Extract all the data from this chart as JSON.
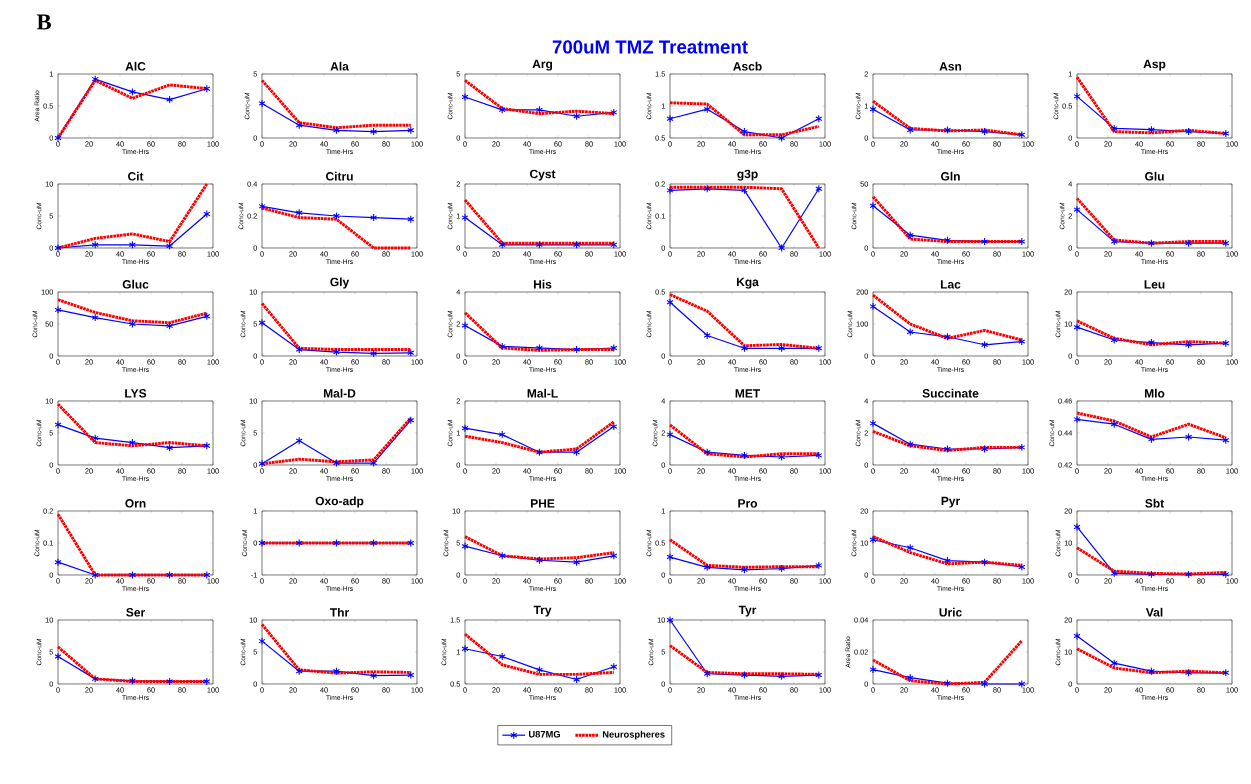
{
  "chart_data": [
    {
      "type": "line",
      "title": "AlC",
      "xlabel": "Time-Hrs",
      "ylabel": "Area Ratio",
      "annotations": [
        "B",
        "700uM TMZ Treatment"
      ],
      "x": [
        0,
        24,
        48,
        72,
        96
      ],
      "xlim": [
        0,
        100
      ],
      "xticks": [
        0,
        20,
        40,
        60,
        80,
        100
      ],
      "ylim": [
        0,
        1
      ],
      "yticks": [
        0,
        0.5,
        1
      ],
      "series": [
        {
          "color": "#0000ff",
          "marker": "cross",
          "line_style": "solid",
          "values": [
            0,
            0.92,
            0.72,
            0.6,
            0.77
          ]
        },
        {
          "color": "#ff0000",
          "marker": "none",
          "line_style": "dotted",
          "values": [
            0,
            0.9,
            0.62,
            0.83,
            0.77
          ]
        }
      ]
    },
    {
      "type": "line",
      "title": "Ala",
      "xlabel": "Time-Hrs",
      "ylabel": "Conc-uM",
      "x": [
        0,
        24,
        48,
        72,
        96
      ],
      "xlim": [
        0,
        100
      ],
      "xticks": [
        0,
        20,
        40,
        60,
        80,
        100
      ],
      "ylim": [
        0,
        5
      ],
      "yticks": [
        0,
        5
      ],
      "series": [
        {
          "color": "#0000ff",
          "marker": "cross",
          "line_style": "solid",
          "values": [
            2.7,
            1.0,
            0.6,
            0.5,
            0.6
          ]
        },
        {
          "color": "#ff0000",
          "marker": "none",
          "line_style": "dotted",
          "values": [
            4.5,
            1.2,
            0.8,
            1.0,
            1.0
          ]
        }
      ]
    },
    {
      "type": "line",
      "title": "Arg",
      "xlabel": "Time-Hrs",
      "ylabel": "Conc-uM",
      "x": [
        0,
        24,
        48,
        72,
        96
      ],
      "xlim": [
        0,
        100
      ],
      "xticks": [
        0,
        20,
        40,
        60,
        80,
        100
      ],
      "ylim": [
        0,
        5
      ],
      "yticks": [
        0,
        5
      ],
      "series": [
        {
          "color": "#0000ff",
          "marker": "cross",
          "line_style": "solid",
          "values": [
            3.2,
            2.2,
            2.2,
            1.7,
            2.0
          ]
        },
        {
          "color": "#ff0000",
          "marker": "none",
          "line_style": "dotted",
          "values": [
            4.5,
            2.3,
            1.9,
            2.1,
            1.9
          ]
        }
      ]
    },
    {
      "type": "line",
      "title": "Ascb",
      "xlabel": "Time-Hrs",
      "ylabel": "Conc-uM",
      "x": [
        0,
        24,
        48,
        72,
        96
      ],
      "xlim": [
        0,
        100
      ],
      "xticks": [
        0,
        20,
        40,
        60,
        80,
        100
      ],
      "ylim": [
        0.5,
        1.5
      ],
      "yticks": [
        0.5,
        1,
        1.5
      ],
      "series": [
        {
          "color": "#0000ff",
          "marker": "cross",
          "line_style": "solid",
          "values": [
            0.8,
            0.95,
            0.6,
            0.5,
            0.8
          ]
        },
        {
          "color": "#ff0000",
          "marker": "none",
          "line_style": "dotted",
          "values": [
            1.05,
            1.03,
            0.55,
            0.55,
            0.68
          ]
        }
      ]
    },
    {
      "type": "line",
      "title": "Asn",
      "xlabel": "Time-Hrs",
      "ylabel": "Conc-uM",
      "x": [
        0,
        24,
        48,
        72,
        96
      ],
      "xlim": [
        0,
        100
      ],
      "xticks": [
        0,
        20,
        40,
        60,
        80,
        100
      ],
      "ylim": [
        0,
        2
      ],
      "yticks": [
        0,
        1,
        2
      ],
      "series": [
        {
          "color": "#0000ff",
          "marker": "cross",
          "line_style": "solid",
          "values": [
            0.9,
            0.25,
            0.25,
            0.2,
            0.1
          ]
        },
        {
          "color": "#ff0000",
          "marker": "none",
          "line_style": "dotted",
          "values": [
            1.15,
            0.3,
            0.22,
            0.25,
            0.1
          ]
        }
      ]
    },
    {
      "type": "line",
      "title": "Asp",
      "xlabel": "Time-Hrs",
      "ylabel": "Conc-uM",
      "x": [
        0,
        24,
        48,
        72,
        96
      ],
      "xlim": [
        0,
        100
      ],
      "xticks": [
        0,
        20,
        40,
        60,
        80,
        100
      ],
      "ylim": [
        0,
        1
      ],
      "yticks": [
        0,
        0.5,
        1
      ],
      "series": [
        {
          "color": "#0000ff",
          "marker": "cross",
          "line_style": "solid",
          "values": [
            0.65,
            0.15,
            0.13,
            0.1,
            0.07
          ]
        },
        {
          "color": "#ff0000",
          "marker": "none",
          "line_style": "dotted",
          "values": [
            0.95,
            0.1,
            0.08,
            0.12,
            0.07
          ]
        }
      ]
    },
    {
      "type": "line",
      "title": "Cit",
      "xlabel": "Time-Hrs",
      "ylabel": "Conc-uM",
      "x": [
        0,
        24,
        48,
        72,
        96
      ],
      "xlim": [
        0,
        100
      ],
      "xticks": [
        0,
        20,
        40,
        60,
        80,
        100
      ],
      "ylim": [
        0,
        10
      ],
      "yticks": [
        0,
        5,
        10
      ],
      "series": [
        {
          "color": "#0000ff",
          "marker": "cross",
          "line_style": "solid",
          "values": [
            0,
            0.5,
            0.5,
            0.3,
            5.3
          ]
        },
        {
          "color": "#ff0000",
          "marker": "none",
          "line_style": "dotted",
          "values": [
            0,
            1.5,
            2.2,
            1.0,
            10
          ]
        }
      ]
    },
    {
      "type": "line",
      "title": "Citru",
      "xlabel": "Time-Hrs",
      "ylabel": "Conc-uM",
      "x": [
        0,
        24,
        48,
        72,
        96
      ],
      "xlim": [
        0,
        100
      ],
      "xticks": [
        0,
        20,
        40,
        60,
        80,
        100
      ],
      "ylim": [
        0,
        0.4
      ],
      "yticks": [
        0,
        0.2,
        0.4
      ],
      "series": [
        {
          "color": "#0000ff",
          "marker": "cross",
          "line_style": "solid",
          "values": [
            0.26,
            0.22,
            0.2,
            0.19,
            0.18
          ]
        },
        {
          "color": "#ff0000",
          "marker": "none",
          "line_style": "dotted",
          "values": [
            0.25,
            0.19,
            0.18,
            0,
            0
          ]
        }
      ]
    },
    {
      "type": "line",
      "title": "Cyst",
      "xlabel": "Time-Hrs",
      "ylabel": "Conc-uM",
      "x": [
        0,
        24,
        48,
        72,
        96
      ],
      "xlim": [
        0,
        100
      ],
      "xticks": [
        0,
        20,
        40,
        60,
        80,
        100
      ],
      "ylim": [
        0,
        2
      ],
      "yticks": [
        0,
        1,
        2
      ],
      "series": [
        {
          "color": "#0000ff",
          "marker": "cross",
          "line_style": "solid",
          "values": [
            0.95,
            0.1,
            0.1,
            0.1,
            0.1
          ]
        },
        {
          "color": "#ff0000",
          "marker": "none",
          "line_style": "dotted",
          "values": [
            1.5,
            0.15,
            0.15,
            0.15,
            0.15
          ]
        }
      ]
    },
    {
      "type": "line",
      "title": "g3p",
      "xlabel": "Time-Hrs",
      "ylabel": "Conc-uM",
      "x": [
        0,
        24,
        48,
        72,
        96
      ],
      "xlim": [
        0,
        100
      ],
      "xticks": [
        0,
        20,
        40,
        60,
        80,
        100
      ],
      "ylim": [
        0,
        0.2
      ],
      "yticks": [
        0,
        0.1,
        0.2
      ],
      "series": [
        {
          "color": "#0000ff",
          "marker": "cross",
          "line_style": "solid",
          "values": [
            0.18,
            0.185,
            0.18,
            0,
            0.185
          ]
        },
        {
          "color": "#ff0000",
          "marker": "none",
          "line_style": "dotted",
          "values": [
            0.19,
            0.19,
            0.19,
            0.185,
            0
          ]
        }
      ]
    },
    {
      "type": "line",
      "title": "Gln",
      "xlabel": "Time-Hrs",
      "ylabel": "Conc-uM",
      "x": [
        0,
        24,
        48,
        72,
        96
      ],
      "xlim": [
        0,
        100
      ],
      "xticks": [
        0,
        20,
        40,
        60,
        80,
        100
      ],
      "ylim": [
        0,
        50
      ],
      "yticks": [
        0,
        50
      ],
      "series": [
        {
          "color": "#0000ff",
          "marker": "cross",
          "line_style": "solid",
          "values": [
            33,
            10,
            6,
            5,
            5
          ]
        },
        {
          "color": "#ff0000",
          "marker": "none",
          "line_style": "dotted",
          "values": [
            40,
            7,
            5,
            5,
            5
          ]
        }
      ]
    },
    {
      "type": "line",
      "title": "Glu",
      "xlabel": "Time-Hrs",
      "ylabel": "Conc-uM",
      "x": [
        0,
        24,
        48,
        72,
        96
      ],
      "xlim": [
        0,
        100
      ],
      "xticks": [
        0,
        20,
        40,
        60,
        80,
        100
      ],
      "ylim": [
        0,
        4
      ],
      "yticks": [
        0,
        2,
        4
      ],
      "series": [
        {
          "color": "#0000ff",
          "marker": "cross",
          "line_style": "solid",
          "values": [
            2.4,
            0.4,
            0.3,
            0.3,
            0.3
          ]
        },
        {
          "color": "#ff0000",
          "marker": "none",
          "line_style": "dotted",
          "values": [
            3.1,
            0.5,
            0.3,
            0.4,
            0.4
          ]
        }
      ]
    },
    {
      "type": "line",
      "title": "Gluc",
      "xlabel": "Time-Hrs",
      "ylabel": "Conc-uM",
      "x": [
        0,
        24,
        48,
        72,
        96
      ],
      "xlim": [
        0,
        100
      ],
      "xticks": [
        0,
        20,
        40,
        60,
        80,
        100
      ],
      "ylim": [
        0,
        100
      ],
      "yticks": [
        0,
        50,
        100
      ],
      "series": [
        {
          "color": "#0000ff",
          "marker": "cross",
          "line_style": "solid",
          "values": [
            72,
            60,
            50,
            47,
            62
          ]
        },
        {
          "color": "#ff0000",
          "marker": "none",
          "line_style": "dotted",
          "values": [
            88,
            68,
            55,
            52,
            67
          ]
        }
      ]
    },
    {
      "type": "line",
      "title": "Gly",
      "xlabel": "Time-Hrs",
      "ylabel": "Conc-uM",
      "x": [
        0,
        24,
        48,
        72,
        96
      ],
      "xlim": [
        0,
        100
      ],
      "xticks": [
        0,
        20,
        40,
        60,
        80,
        100
      ],
      "ylim": [
        0,
        10
      ],
      "yticks": [
        0,
        5,
        10
      ],
      "series": [
        {
          "color": "#0000ff",
          "marker": "cross",
          "line_style": "solid",
          "values": [
            5.2,
            1.0,
            0.6,
            0.4,
            0.5
          ]
        },
        {
          "color": "#ff0000",
          "marker": "none",
          "line_style": "dotted",
          "values": [
            8.2,
            1.2,
            1.0,
            1.0,
            1.0
          ]
        }
      ]
    },
    {
      "type": "line",
      "title": "His",
      "xlabel": "Time-Hrs",
      "ylabel": "Conc-uM",
      "x": [
        0,
        24,
        48,
        72,
        96
      ],
      "xlim": [
        0,
        100
      ],
      "xticks": [
        0,
        20,
        40,
        60,
        80,
        100
      ],
      "ylim": [
        0,
        4
      ],
      "yticks": [
        0,
        2,
        4
      ],
      "series": [
        {
          "color": "#0000ff",
          "marker": "cross",
          "line_style": "solid",
          "values": [
            1.9,
            0.6,
            0.5,
            0.4,
            0.5
          ]
        },
        {
          "color": "#ff0000",
          "marker": "none",
          "line_style": "dotted",
          "values": [
            2.7,
            0.5,
            0.35,
            0.4,
            0.4
          ]
        }
      ]
    },
    {
      "type": "line",
      "title": "Kga",
      "xlabel": "Time-Hrs",
      "ylabel": "Conc-uM",
      "x": [
        0,
        24,
        48,
        72,
        96
      ],
      "xlim": [
        0,
        100
      ],
      "xticks": [
        0,
        20,
        40,
        60,
        80,
        100
      ],
      "ylim": [
        0,
        0.5
      ],
      "yticks": [
        0,
        0.5
      ],
      "series": [
        {
          "color": "#0000ff",
          "marker": "cross",
          "line_style": "solid",
          "values": [
            0.42,
            0.16,
            0.06,
            0.06,
            0.06
          ]
        },
        {
          "color": "#ff0000",
          "marker": "none",
          "line_style": "dotted",
          "values": [
            0.48,
            0.35,
            0.08,
            0.09,
            0.06
          ]
        }
      ]
    },
    {
      "type": "line",
      "title": "Lac",
      "xlabel": "Time-Hrs",
      "ylabel": "Conc-uM",
      "x": [
        0,
        24,
        48,
        72,
        96
      ],
      "xlim": [
        0,
        100
      ],
      "xticks": [
        0,
        20,
        40,
        60,
        80,
        100
      ],
      "ylim": [
        0,
        200
      ],
      "yticks": [
        0,
        100,
        200
      ],
      "series": [
        {
          "color": "#0000ff",
          "marker": "cross",
          "line_style": "solid",
          "values": [
            155,
            75,
            60,
            35,
            45
          ]
        },
        {
          "color": "#ff0000",
          "marker": "none",
          "line_style": "dotted",
          "values": [
            190,
            100,
            55,
            80,
            50
          ]
        }
      ]
    },
    {
      "type": "line",
      "title": "Leu",
      "xlabel": "Time-Hrs",
      "ylabel": "Conc-uM",
      "x": [
        0,
        24,
        48,
        72,
        96
      ],
      "xlim": [
        0,
        100
      ],
      "xticks": [
        0,
        20,
        40,
        60,
        80,
        100
      ],
      "ylim": [
        0,
        20
      ],
      "yticks": [
        0,
        10,
        20
      ],
      "series": [
        {
          "color": "#0000ff",
          "marker": "cross",
          "line_style": "solid",
          "values": [
            9,
            5,
            4.2,
            3.5,
            4
          ]
        },
        {
          "color": "#ff0000",
          "marker": "none",
          "line_style": "dotted",
          "values": [
            11,
            5.5,
            3.5,
            4.5,
            4
          ]
        }
      ]
    },
    {
      "type": "line",
      "title": "LYS",
      "xlabel": "Time-Hrs",
      "ylabel": "Conc-uM",
      "x": [
        0,
        24,
        48,
        72,
        96
      ],
      "xlim": [
        0,
        100
      ],
      "xticks": [
        0,
        20,
        40,
        60,
        80,
        100
      ],
      "ylim": [
        0,
        10
      ],
      "yticks": [
        0,
        5,
        10
      ],
      "series": [
        {
          "color": "#0000ff",
          "marker": "cross",
          "line_style": "solid",
          "values": [
            6.3,
            4.2,
            3.5,
            2.7,
            3
          ]
        },
        {
          "color": "#ff0000",
          "marker": "none",
          "line_style": "dotted",
          "values": [
            9.5,
            3.5,
            3,
            3.5,
            3
          ]
        }
      ]
    },
    {
      "type": "line",
      "title": "Mal-D",
      "xlabel": "Time-Hrs",
      "ylabel": "Conc-uM",
      "x": [
        0,
        24,
        48,
        72,
        96
      ],
      "xlim": [
        0,
        100
      ],
      "xticks": [
        0,
        20,
        40,
        60,
        80,
        100
      ],
      "ylim": [
        0,
        10
      ],
      "yticks": [
        0,
        5,
        10
      ],
      "series": [
        {
          "color": "#0000ff",
          "marker": "cross",
          "line_style": "solid",
          "values": [
            0.2,
            3.8,
            0.3,
            0.3,
            7
          ]
        },
        {
          "color": "#ff0000",
          "marker": "none",
          "line_style": "dotted",
          "values": [
            0.2,
            0.9,
            0.5,
            0.8,
            7.3
          ]
        }
      ]
    },
    {
      "type": "line",
      "title": "Mal-L",
      "xlabel": "Time-Hrs",
      "ylabel": "Conc-uM",
      "x": [
        0,
        24,
        48,
        72,
        96
      ],
      "xlim": [
        0,
        100
      ],
      "xticks": [
        0,
        20,
        40,
        60,
        80,
        100
      ],
      "ylim": [
        0,
        2
      ],
      "yticks": [
        0,
        1,
        2
      ],
      "series": [
        {
          "color": "#0000ff",
          "marker": "cross",
          "line_style": "solid",
          "values": [
            1.15,
            0.95,
            0.4,
            0.4,
            1.2
          ]
        },
        {
          "color": "#ff0000",
          "marker": "none",
          "line_style": "dotted",
          "values": [
            0.9,
            0.7,
            0.4,
            0.5,
            1.35
          ]
        }
      ]
    },
    {
      "type": "line",
      "title": "MET",
      "xlabel": "Time-Hrs",
      "ylabel": "Conc-uM",
      "x": [
        0,
        24,
        48,
        72,
        96
      ],
      "xlim": [
        0,
        100
      ],
      "xticks": [
        0,
        20,
        40,
        60,
        80,
        100
      ],
      "ylim": [
        0,
        4
      ],
      "yticks": [
        0,
        2,
        4
      ],
      "series": [
        {
          "color": "#0000ff",
          "marker": "cross",
          "line_style": "solid",
          "values": [
            1.9,
            0.8,
            0.6,
            0.5,
            0.6
          ]
        },
        {
          "color": "#ff0000",
          "marker": "none",
          "line_style": "dotted",
          "values": [
            2.5,
            0.7,
            0.5,
            0.7,
            0.7
          ]
        }
      ]
    },
    {
      "type": "line",
      "title": "Succinate",
      "xlabel": "Time-Hrs",
      "ylabel": "Conc-uM",
      "x": [
        0,
        24,
        48,
        72,
        96
      ],
      "xlim": [
        0,
        100
      ],
      "xticks": [
        0,
        20,
        40,
        60,
        80,
        100
      ],
      "ylim": [
        0,
        4
      ],
      "yticks": [
        0,
        2,
        4
      ],
      "series": [
        {
          "color": "#0000ff",
          "marker": "cross",
          "line_style": "solid",
          "values": [
            2.6,
            1.3,
            1.0,
            1.0,
            1.1
          ]
        },
        {
          "color": "#ff0000",
          "marker": "none",
          "line_style": "dotted",
          "values": [
            2.1,
            1.2,
            0.9,
            1.1,
            1.1
          ]
        }
      ]
    },
    {
      "type": "line",
      "title": "Mlo",
      "xlabel": "Time-Hrs",
      "ylabel": "Conc-uM",
      "x": [
        0,
        24,
        48,
        72,
        96
      ],
      "xlim": [
        0,
        100
      ],
      "xticks": [
        0,
        20,
        40,
        60,
        80,
        100
      ],
      "ylim": [
        0.42,
        0.46
      ],
      "yticks": [
        0.42,
        0.44,
        0.46
      ],
      "series": [
        {
          "color": "#0000ff",
          "marker": "cross",
          "line_style": "solid",
          "values": [
            0.4485,
            0.4455,
            0.436,
            0.4375,
            0.4355
          ]
        },
        {
          "color": "#ff0000",
          "marker": "none",
          "line_style": "dotted",
          "values": [
            0.4525,
            0.4475,
            0.4375,
            0.4455,
            0.437
          ]
        }
      ]
    },
    {
      "type": "line",
      "title": "Orn",
      "xlabel": "Time-Hrs",
      "ylabel": "Conc-uM",
      "x": [
        0,
        24,
        48,
        72,
        96
      ],
      "xlim": [
        0,
        100
      ],
      "xticks": [
        0,
        20,
        40,
        60,
        80,
        100
      ],
      "ylim": [
        0,
        0.2
      ],
      "yticks": [
        0,
        0.1,
        0.2
      ],
      "series": [
        {
          "color": "#0000ff",
          "marker": "cross",
          "line_style": "solid",
          "values": [
            0.04,
            0,
            0,
            0,
            0
          ]
        },
        {
          "color": "#ff0000",
          "marker": "none",
          "line_style": "dotted",
          "values": [
            0.19,
            0,
            0,
            0,
            0
          ]
        }
      ]
    },
    {
      "type": "line",
      "title": "Oxo-adp",
      "xlabel": "Time-Hrs",
      "ylabel": "Conc-uM",
      "x": [
        0,
        24,
        48,
        72,
        96
      ],
      "xlim": [
        0,
        100
      ],
      "xticks": [
        0,
        20,
        40,
        60,
        80,
        100
      ],
      "ylim": [
        -1,
        1
      ],
      "yticks": [
        -1,
        0,
        1
      ],
      "series": [
        {
          "color": "#0000ff",
          "marker": "cross",
          "line_style": "solid",
          "values": [
            0,
            0,
            0,
            0,
            0
          ]
        },
        {
          "color": "#ff0000",
          "marker": "none",
          "line_style": "dotted",
          "values": [
            0,
            0,
            0,
            0,
            0
          ]
        }
      ]
    },
    {
      "type": "line",
      "title": "PHE",
      "xlabel": "Time-Hrs",
      "ylabel": "Conc-uM",
      "x": [
        0,
        24,
        48,
        72,
        96
      ],
      "xlim": [
        0,
        100
      ],
      "xticks": [
        0,
        20,
        40,
        60,
        80,
        100
      ],
      "ylim": [
        0,
        10
      ],
      "yticks": [
        0,
        5,
        10
      ],
      "series": [
        {
          "color": "#0000ff",
          "marker": "cross",
          "line_style": "solid",
          "values": [
            4.5,
            3,
            2.3,
            2,
            3
          ]
        },
        {
          "color": "#ff0000",
          "marker": "none",
          "line_style": "dotted",
          "values": [
            6,
            3,
            2.5,
            2.7,
            3.5
          ]
        }
      ]
    },
    {
      "type": "line",
      "title": "Pro",
      "xlabel": "Time-Hrs",
      "ylabel": "Conc-uM",
      "x": [
        0,
        24,
        48,
        72,
        96
      ],
      "xlim": [
        0,
        100
      ],
      "xticks": [
        0,
        20,
        40,
        60,
        80,
        100
      ],
      "ylim": [
        0,
        1
      ],
      "yticks": [
        0,
        0.5,
        1
      ],
      "series": [
        {
          "color": "#0000ff",
          "marker": "cross",
          "line_style": "solid",
          "values": [
            0.28,
            0.12,
            0.08,
            0.1,
            0.15
          ]
        },
        {
          "color": "#ff0000",
          "marker": "none",
          "line_style": "dotted",
          "values": [
            0.55,
            0.15,
            0.12,
            0.13,
            0.13
          ]
        }
      ]
    },
    {
      "type": "line",
      "title": "Pyr",
      "xlabel": "Time-Hrs",
      "ylabel": "Conc-uM",
      "x": [
        0,
        24,
        48,
        72,
        96
      ],
      "xlim": [
        0,
        100
      ],
      "xticks": [
        0,
        20,
        40,
        60,
        80,
        100
      ],
      "ylim": [
        0,
        20
      ],
      "yticks": [
        0,
        10,
        20
      ],
      "series": [
        {
          "color": "#0000ff",
          "marker": "cross",
          "line_style": "solid",
          "values": [
            11,
            8.5,
            4.5,
            4,
            2.5
          ]
        },
        {
          "color": "#ff0000",
          "marker": "none",
          "line_style": "dotted",
          "values": [
            12,
            7,
            3.5,
            4,
            3
          ]
        }
      ]
    },
    {
      "type": "line",
      "title": "Sbt",
      "xlabel": "Time-Hrs",
      "ylabel": "Conc-uM",
      "x": [
        0,
        24,
        48,
        72,
        96
      ],
      "xlim": [
        0,
        100
      ],
      "xticks": [
        0,
        20,
        40,
        60,
        80,
        100
      ],
      "ylim": [
        0,
        20
      ],
      "yticks": [
        0,
        10,
        20
      ],
      "series": [
        {
          "color": "#0000ff",
          "marker": "cross",
          "line_style": "solid",
          "values": [
            15,
            0.5,
            0.2,
            0.2,
            0.2
          ]
        },
        {
          "color": "#ff0000",
          "marker": "none",
          "line_style": "dotted",
          "values": [
            8.5,
            1.2,
            0.5,
            0.3,
            0.8
          ]
        }
      ]
    },
    {
      "type": "line",
      "title": "Ser",
      "xlabel": "Time-Hrs",
      "ylabel": "Conc-uM",
      "x": [
        0,
        24,
        48,
        72,
        96
      ],
      "xlim": [
        0,
        100
      ],
      "xticks": [
        0,
        20,
        40,
        60,
        80,
        100
      ],
      "ylim": [
        0,
        10
      ],
      "yticks": [
        0,
        5,
        10
      ],
      "series": [
        {
          "color": "#0000ff",
          "marker": "cross",
          "line_style": "solid",
          "values": [
            4.3,
            0.8,
            0.5,
            0.4,
            0.4
          ]
        },
        {
          "color": "#ff0000",
          "marker": "none",
          "line_style": "dotted",
          "values": [
            5.8,
            0.8,
            0.4,
            0.4,
            0.4
          ]
        }
      ]
    },
    {
      "type": "line",
      "title": "Thr",
      "xlabel": "Time-Hrs",
      "ylabel": "Conc-uM",
      "x": [
        0,
        24,
        48,
        72,
        96
      ],
      "xlim": [
        0,
        100
      ],
      "xticks": [
        0,
        20,
        40,
        60,
        80,
        100
      ],
      "ylim": [
        0,
        10
      ],
      "yticks": [
        0,
        5,
        10
      ],
      "series": [
        {
          "color": "#0000ff",
          "marker": "cross",
          "line_style": "solid",
          "values": [
            6.7,
            2.0,
            2.0,
            1.3,
            1.4
          ]
        },
        {
          "color": "#ff0000",
          "marker": "none",
          "line_style": "dotted",
          "values": [
            9.3,
            2.2,
            1.7,
            1.9,
            1.8
          ]
        }
      ]
    },
    {
      "type": "line",
      "title": "Try",
      "xlabel": "Time-Hrs",
      "ylabel": "Conc-uM",
      "x": [
        0,
        24,
        48,
        72,
        96
      ],
      "xlim": [
        0,
        100
      ],
      "xticks": [
        0,
        20,
        40,
        60,
        80,
        100
      ],
      "ylim": [
        0.5,
        1.5
      ],
      "yticks": [
        0.5,
        1,
        1.5
      ],
      "series": [
        {
          "color": "#0000ff",
          "marker": "cross",
          "line_style": "solid",
          "values": [
            1.05,
            0.93,
            0.72,
            0.57,
            0.77
          ]
        },
        {
          "color": "#ff0000",
          "marker": "none",
          "line_style": "dotted",
          "values": [
            1.28,
            0.8,
            0.65,
            0.65,
            0.68
          ]
        }
      ]
    },
    {
      "type": "line",
      "title": "Tyr",
      "xlabel": "Time-Hrs",
      "ylabel": "Conc-uM",
      "legend": "bottom",
      "x": [
        0,
        24,
        48,
        72,
        96
      ],
      "xlim": [
        0,
        100
      ],
      "xticks": [
        0,
        20,
        40,
        60,
        80,
        100
      ],
      "ylim": [
        0,
        10
      ],
      "yticks": [
        0,
        5,
        10
      ],
      "series": [
        {
          "name": "U87MG",
          "color": "#0000ff",
          "marker": "cross",
          "line_style": "solid",
          "values": [
            10,
            1.6,
            1.4,
            1.2,
            1.4
          ]
        },
        {
          "name": "Neurospheres",
          "color": "#ff0000",
          "marker": "none",
          "line_style": "dotted",
          "values": [
            6,
            1.8,
            1.6,
            1.6,
            1.5
          ]
        }
      ]
    },
    {
      "type": "line",
      "title": "Uric",
      "xlabel": "Time-Hrs",
      "ylabel": "Area Ratio",
      "x": [
        0,
        24,
        48,
        72,
        96
      ],
      "xlim": [
        0,
        100
      ],
      "xticks": [
        0,
        20,
        40,
        60,
        80,
        100
      ],
      "ylim": [
        0,
        0.04
      ],
      "yticks": [
        0,
        0.02,
        0.04
      ],
      "series": [
        {
          "color": "#0000ff",
          "marker": "cross",
          "line_style": "solid",
          "values": [
            0.009,
            0.004,
            0.0005,
            0,
            0
          ]
        },
        {
          "color": "#ff0000",
          "marker": "none",
          "line_style": "dotted",
          "values": [
            0.015,
            0.002,
            0,
            0.001,
            0.027
          ]
        }
      ]
    },
    {
      "type": "line",
      "title": "Val",
      "xlabel": "Time-Hrs",
      "ylabel": "Conc-uM",
      "x": [
        0,
        24,
        48,
        72,
        96
      ],
      "xlim": [
        0,
        100
      ],
      "xticks": [
        0,
        20,
        40,
        60,
        80,
        100
      ],
      "ylim": [
        0,
        20
      ],
      "yticks": [
        0,
        10,
        20
      ],
      "series": [
        {
          "color": "#0000ff",
          "marker": "cross",
          "line_style": "solid",
          "values": [
            15,
            6.5,
            4,
            3.5,
            3.5
          ]
        },
        {
          "color": "#ff0000",
          "marker": "none",
          "line_style": "dotted",
          "values": [
            11,
            5,
            3.5,
            4,
            3.5
          ]
        }
      ]
    }
  ]
}
